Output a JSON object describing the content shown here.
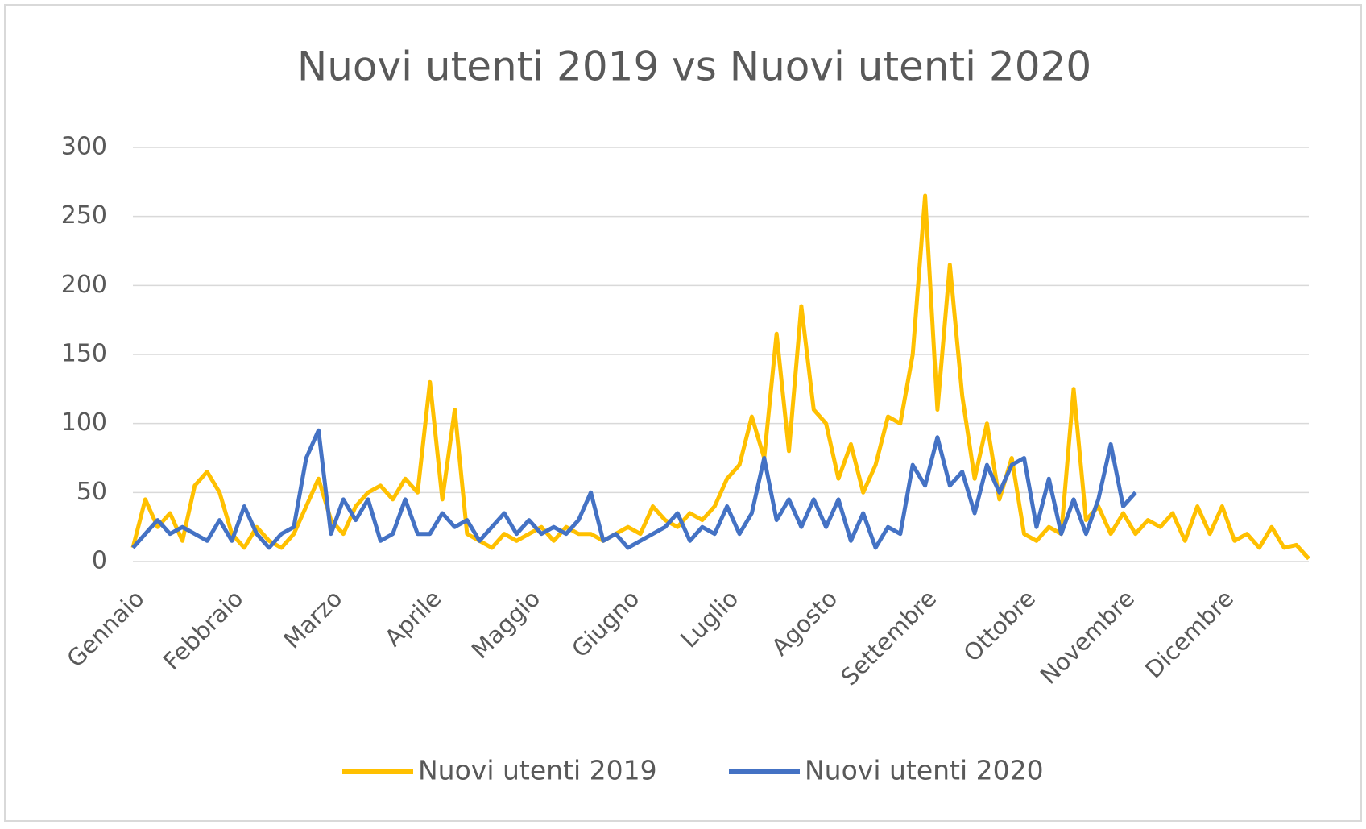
{
  "chart_data": {
    "type": "line",
    "title": "Nuovi utenti 2019 vs Nuovi utenti 2020",
    "categories": [
      "Gennaio",
      null,
      null,
      null,
      null,
      null,
      null,
      null,
      "Febbraio",
      null,
      null,
      null,
      null,
      null,
      null,
      null,
      "Marzo",
      null,
      null,
      null,
      null,
      null,
      null,
      null,
      "Aprile",
      null,
      null,
      null,
      null,
      null,
      null,
      null,
      "Maggio",
      null,
      null,
      null,
      null,
      null,
      null,
      null,
      "Giugno",
      null,
      null,
      null,
      null,
      null,
      null,
      null,
      "Luglio",
      null,
      null,
      null,
      null,
      null,
      null,
      null,
      "Agosto",
      null,
      null,
      null,
      null,
      null,
      null,
      null,
      "Settembre",
      null,
      null,
      null,
      null,
      null,
      null,
      null,
      "Ottobre",
      null,
      null,
      null,
      null,
      null,
      null,
      null,
      "Novembre",
      null,
      null,
      null,
      null,
      null,
      null,
      null,
      "Dicembre",
      null,
      null,
      null,
      null,
      null,
      null,
      null
    ],
    "series": [
      {
        "name": "Nuovi utenti 2019",
        "color": "#ffc000",
        "values": [
          10,
          45,
          25,
          35,
          15,
          55,
          65,
          50,
          20,
          10,
          25,
          15,
          10,
          20,
          40,
          60,
          30,
          20,
          40,
          50,
          55,
          45,
          60,
          50,
          130,
          45,
          110,
          20,
          15,
          10,
          20,
          15,
          20,
          25,
          15,
          25,
          20,
          20,
          15,
          20,
          25,
          20,
          40,
          30,
          25,
          35,
          30,
          40,
          60,
          70,
          105,
          75,
          165,
          80,
          185,
          110,
          100,
          60,
          85,
          50,
          70,
          105,
          100,
          150,
          265,
          110,
          215,
          120,
          60,
          100,
          45,
          75,
          20,
          15,
          25,
          20,
          125,
          30,
          40,
          20,
          35,
          20,
          30,
          25,
          35,
          15,
          40,
          20,
          40,
          15,
          20,
          10,
          25,
          10,
          12,
          2
        ]
      },
      {
        "name": "Nuovi utenti 2020",
        "color": "#4472c4",
        "values": [
          10,
          20,
          30,
          20,
          25,
          20,
          15,
          30,
          15,
          40,
          20,
          10,
          20,
          25,
          75,
          95,
          20,
          45,
          30,
          45,
          15,
          20,
          45,
          20,
          20,
          35,
          25,
          30,
          15,
          25,
          35,
          20,
          30,
          20,
          25,
          20,
          30,
          50,
          15,
          20,
          10,
          15,
          20,
          25,
          35,
          15,
          25,
          20,
          40,
          20,
          35,
          75,
          30,
          45,
          25,
          45,
          25,
          45,
          15,
          35,
          10,
          25,
          20,
          70,
          55,
          90,
          55,
          65,
          35,
          70,
          50,
          70,
          75,
          25,
          60,
          20,
          45,
          20,
          45,
          85,
          40,
          50,
          null,
          null,
          null,
          null,
          null,
          null,
          null,
          null,
          null,
          null,
          null,
          null,
          null,
          null
        ]
      }
    ],
    "ylim": [
      0,
      300
    ],
    "yticks": [
      0,
      50,
      100,
      150,
      200,
      250,
      300
    ],
    "grid": true,
    "legend": "bottom"
  }
}
